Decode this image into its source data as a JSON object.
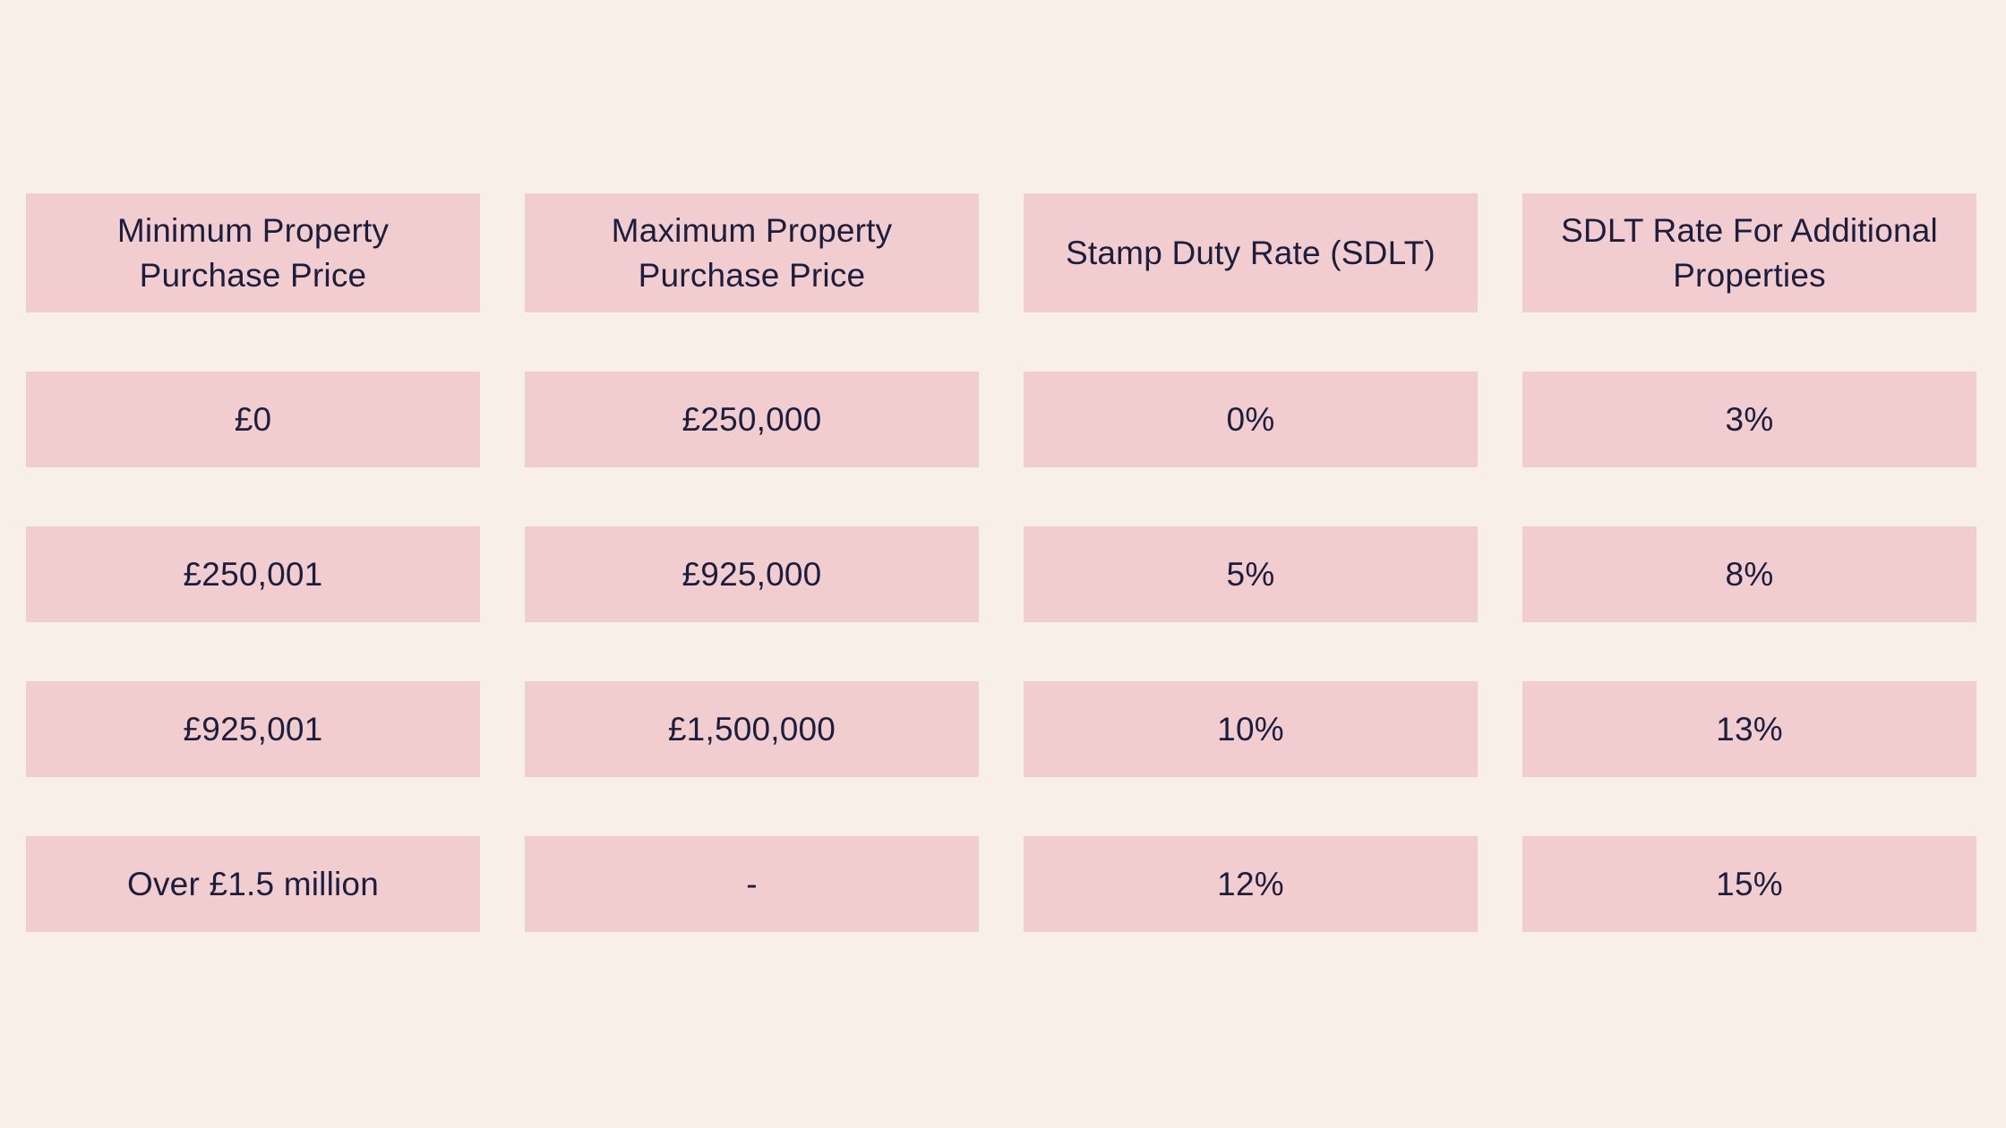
{
  "theme": {
    "page_background": "#F8EFE8",
    "cell_background": "#F2CDD0",
    "text_color": "#1B1F3D"
  },
  "chart_data": {
    "type": "table",
    "columns": [
      "Minimum Property Purchase Price",
      "Maximum Property Purchase Price",
      "Stamp Duty Rate (SDLT)",
      "SDLT Rate For Additional Properties"
    ],
    "rows": [
      [
        "£0",
        "£250,000",
        "0%",
        "3%"
      ],
      [
        "£250,001",
        "£925,000",
        "5%",
        "8%"
      ],
      [
        "£925,001",
        "£1,500,000",
        "10%",
        "13%"
      ],
      [
        "Over £1.5 million",
        "-",
        "12%",
        "15%"
      ]
    ]
  },
  "table": {
    "header_lines": [
      [
        "Minimum Property",
        "Purchase Price"
      ],
      [
        "Maximum Property",
        "Purchase Price"
      ],
      [
        "Stamp Duty Rate (SDLT)"
      ],
      [
        "SDLT Rate For Additional",
        "Properties"
      ]
    ]
  }
}
